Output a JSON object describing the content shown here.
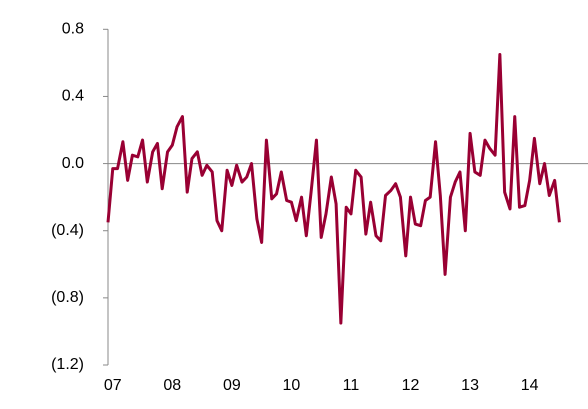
{
  "chart_data": {
    "type": "line",
    "x": [
      2006.92,
      2007.0,
      2007.08,
      2007.17,
      2007.25,
      2007.33,
      2007.42,
      2007.5,
      2007.58,
      2007.67,
      2007.75,
      2007.83,
      2007.92,
      2008.0,
      2008.08,
      2008.17,
      2008.25,
      2008.33,
      2008.42,
      2008.5,
      2008.58,
      2008.67,
      2008.75,
      2008.83,
      2008.92,
      2009.0,
      2009.08,
      2009.17,
      2009.25,
      2009.33,
      2009.42,
      2009.5,
      2009.58,
      2009.67,
      2009.75,
      2009.83,
      2009.92,
      2010.0,
      2010.08,
      2010.17,
      2010.25,
      2010.33,
      2010.42,
      2010.5,
      2010.58,
      2010.67,
      2010.75,
      2010.83,
      2010.92,
      2011.0,
      2011.08,
      2011.17,
      2011.25,
      2011.33,
      2011.42,
      2011.5,
      2011.58,
      2011.67,
      2011.75,
      2011.83,
      2011.92,
      2012.0,
      2012.08,
      2012.17,
      2012.25,
      2012.33,
      2012.42,
      2012.5,
      2012.58,
      2012.67,
      2012.75,
      2012.83,
      2012.92,
      2013.0,
      2013.08,
      2013.17,
      2013.25,
      2013.33,
      2013.42,
      2013.5,
      2013.58,
      2013.67,
      2013.75,
      2013.83,
      2013.92,
      2014.0,
      2014.08,
      2014.17,
      2014.25,
      2014.33,
      2014.42,
      2014.5
    ],
    "series": [
      {
        "color": "#990033",
        "values": [
          -0.35,
          -0.03,
          -0.03,
          0.13,
          -0.1,
          0.05,
          0.04,
          0.14,
          -0.11,
          0.07,
          0.12,
          -0.15,
          0.07,
          0.11,
          0.22,
          0.28,
          -0.17,
          0.03,
          0.07,
          -0.07,
          -0.01,
          -0.05,
          -0.34,
          -0.4,
          -0.04,
          -0.13,
          -0.01,
          -0.11,
          -0.08,
          0.0,
          -0.33,
          -0.47,
          0.14,
          -0.21,
          -0.18,
          -0.05,
          -0.22,
          -0.23,
          -0.34,
          -0.2,
          -0.43,
          -0.17,
          0.14,
          -0.44,
          -0.3,
          -0.08,
          -0.24,
          -0.95,
          -0.26,
          -0.3,
          -0.04,
          -0.08,
          -0.42,
          -0.23,
          -0.43,
          -0.46,
          -0.19,
          -0.16,
          -0.12,
          -0.2,
          -0.55,
          -0.2,
          -0.36,
          -0.37,
          -0.22,
          -0.2,
          0.13,
          -0.19,
          -0.66,
          -0.2,
          -0.11,
          -0.05,
          -0.4,
          0.18,
          -0.05,
          -0.07,
          0.14,
          0.09,
          0.05,
          0.65,
          -0.17,
          -0.27,
          0.28,
          -0.26,
          -0.25,
          -0.1,
          0.15,
          -0.12,
          0.0,
          -0.19,
          -0.1,
          -0.35
        ]
      }
    ],
    "xlim": [
      2006.92,
      2014.98
    ],
    "xticks": [
      {
        "value": 2007,
        "label": "07"
      },
      {
        "value": 2008,
        "label": "08"
      },
      {
        "value": 2009,
        "label": "09"
      },
      {
        "value": 2010,
        "label": "10"
      },
      {
        "value": 2011,
        "label": "11"
      },
      {
        "value": 2012,
        "label": "12"
      },
      {
        "value": 2013,
        "label": "13"
      },
      {
        "value": 2014,
        "label": "14"
      }
    ],
    "ylim": [
      -1.2,
      0.8
    ],
    "yticks": [
      0.8,
      0.4,
      {
        "value": 0,
        "label": "0.0"
      },
      {
        "value": -0.4,
        "label": "(0.4)"
      },
      {
        "value": -0.8,
        "label": "(0.8)"
      },
      {
        "value": -1.2,
        "label": "(1.2)"
      }
    ]
  }
}
